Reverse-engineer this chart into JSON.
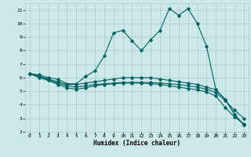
{
  "title": "",
  "xlabel": "Humidex (Indice chaleur)",
  "bg_color": "#cce8e8",
  "grid_color": "#aacccc",
  "line_color": "#006060",
  "xlim": [
    -0.5,
    23.5
  ],
  "ylim": [
    2,
    11.5
  ],
  "yticks": [
    2,
    3,
    4,
    5,
    6,
    7,
    8,
    9,
    10,
    11
  ],
  "xticks": [
    0,
    1,
    2,
    3,
    4,
    5,
    6,
    7,
    8,
    9,
    10,
    11,
    12,
    13,
    14,
    15,
    16,
    17,
    18,
    19,
    20,
    21,
    22,
    23
  ],
  "line1_x": [
    0,
    1,
    2,
    3,
    4,
    5,
    6,
    7,
    8,
    9,
    10,
    11,
    12,
    13,
    14,
    15,
    16,
    17,
    18,
    19,
    20,
    21,
    22,
    23
  ],
  "line1_y": [
    6.3,
    6.2,
    6.0,
    5.9,
    5.55,
    5.55,
    6.1,
    6.5,
    7.6,
    9.3,
    9.5,
    8.7,
    8.0,
    8.8,
    9.5,
    11.1,
    10.6,
    11.1,
    10.0,
    8.3,
    5.1,
    4.4,
    3.3,
    2.5
  ],
  "line2_x": [
    0,
    1,
    2,
    3,
    4,
    5,
    6,
    7,
    8,
    9,
    10,
    11,
    12,
    13,
    14,
    15,
    16,
    17,
    18,
    19,
    20,
    21,
    22,
    23
  ],
  "line2_y": [
    6.3,
    6.1,
    5.9,
    5.7,
    5.5,
    5.5,
    5.6,
    5.7,
    5.8,
    5.9,
    6.0,
    6.0,
    6.0,
    6.0,
    5.9,
    5.8,
    5.7,
    5.6,
    5.5,
    5.3,
    5.1,
    4.4,
    3.3,
    2.5
  ],
  "line3_x": [
    0,
    1,
    2,
    3,
    4,
    5,
    6,
    7,
    8,
    9,
    10,
    11,
    12,
    13,
    14,
    15,
    16,
    17,
    18,
    19,
    20,
    21,
    22,
    23
  ],
  "line3_y": [
    6.3,
    6.1,
    5.85,
    5.6,
    5.4,
    5.3,
    5.4,
    5.5,
    5.55,
    5.6,
    5.65,
    5.65,
    5.65,
    5.65,
    5.6,
    5.55,
    5.5,
    5.4,
    5.3,
    5.15,
    4.9,
    4.3,
    3.6,
    3.0
  ],
  "line4_x": [
    0,
    1,
    2,
    3,
    4,
    5,
    6,
    7,
    8,
    9,
    10,
    11,
    12,
    13,
    14,
    15,
    16,
    17,
    18,
    19,
    20,
    21,
    22,
    23
  ],
  "line4_y": [
    6.3,
    6.0,
    5.8,
    5.5,
    5.25,
    5.15,
    5.25,
    5.4,
    5.5,
    5.55,
    5.6,
    5.6,
    5.6,
    5.55,
    5.5,
    5.4,
    5.3,
    5.2,
    5.1,
    4.95,
    4.65,
    3.8,
    3.1,
    2.6
  ]
}
